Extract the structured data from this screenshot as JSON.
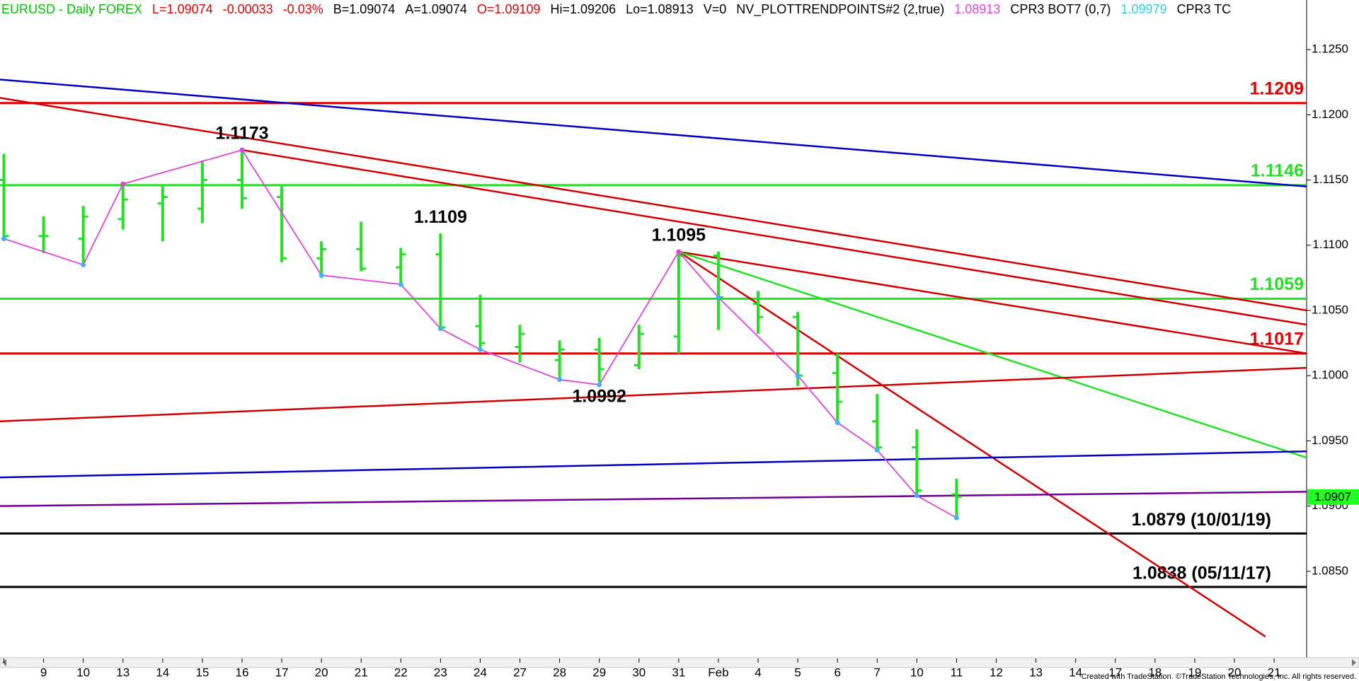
{
  "chart_data": {
    "type": "ohlc",
    "header": [
      {
        "text": "EURUSD - Daily  FOREX",
        "color": "#00c000"
      },
      {
        "text": "L=1.09074",
        "color": "#e00000"
      },
      {
        "text": "-0.00033",
        "color": "#e00000"
      },
      {
        "text": "-0.03%",
        "color": "#e00000"
      },
      {
        "text": "B=1.09074",
        "color": "#000000"
      },
      {
        "text": "A=1.09074",
        "color": "#000000"
      },
      {
        "text": "O=1.09109",
        "color": "#e00000"
      },
      {
        "text": "Hi=1.09206",
        "color": "#000000"
      },
      {
        "text": "Lo=1.08913",
        "color": "#000000"
      },
      {
        "text": "V=0",
        "color": "#000000"
      },
      {
        "text": "NV_PLOTTRENDPOINTS#2 (2,true)",
        "color": "#000000"
      },
      {
        "text": "1.08913",
        "color": "#e040e0"
      },
      {
        "text": "CPR3 BOT7 (0,7)",
        "color": "#000000"
      },
      {
        "text": "1.09979",
        "color": "#30d0e0"
      },
      {
        "text": "CPR3 TC",
        "color": "#000000"
      }
    ],
    "categories": [
      null,
      "9",
      "10",
      "13",
      "14",
      "15",
      "16",
      "17",
      "20",
      "21",
      "22",
      "23",
      "24",
      "27",
      "28",
      "29",
      "30",
      "31",
      "Feb",
      "4",
      "5",
      "6",
      "7",
      "10",
      "11",
      "12",
      "13",
      "14",
      "17",
      "18",
      "19",
      "20",
      "21"
    ],
    "open": [
      1.115,
      1.1107,
      1.1105,
      1.112,
      1.1132,
      1.1128,
      1.115,
      1.1137,
      1.109,
      1.1097,
      1.1083,
      1.1093,
      1.1038,
      1.1022,
      1.1012,
      1.102,
      1.1008,
      1.103,
      1.1092,
      1.1055,
      1.1045,
      1.1002,
      1.0965,
      1.0945,
      1.0909,
      null,
      null,
      null,
      null,
      null,
      null,
      null,
      null
    ],
    "high": [
      1.117,
      1.1122,
      1.113,
      1.1147,
      1.1145,
      1.1165,
      1.1173,
      1.1145,
      1.1103,
      1.1118,
      1.1098,
      1.1109,
      1.1062,
      1.1039,
      1.1027,
      1.1029,
      1.1039,
      1.1095,
      1.1095,
      1.1065,
      1.1049,
      1.1017,
      1.0986,
      1.0959,
      1.0921,
      null,
      null,
      null,
      null,
      null,
      null,
      null,
      null
    ],
    "low": [
      1.1105,
      1.1094,
      1.1085,
      1.1112,
      1.1103,
      1.1117,
      1.1128,
      1.1087,
      1.1075,
      1.108,
      1.107,
      1.1037,
      1.1019,
      1.101,
      1.0997,
      1.0995,
      1.1005,
      1.1017,
      1.1035,
      1.1032,
      1.0992,
      1.0964,
      1.0942,
      1.0909,
      1.0891,
      null,
      null,
      null,
      null,
      null,
      null,
      null,
      null
    ],
    "close": [
      1.1107,
      1.1107,
      1.1122,
      1.1135,
      1.1137,
      1.115,
      1.1136,
      1.109,
      1.1097,
      1.1082,
      1.1093,
      1.1037,
      1.1025,
      1.1032,
      1.102,
      1.1005,
      1.1032,
      1.1092,
      1.106,
      1.1045,
      1.1,
      1.098,
      1.0945,
      1.0912,
      1.0907,
      null,
      null,
      null,
      null,
      null,
      null,
      null,
      null
    ],
    "bar_color": "#22e022",
    "ylim": [
      1.078,
      1.1288
    ],
    "yticks": [
      {
        "value": 1.085,
        "label": "1.0850"
      },
      {
        "value": 1.09,
        "label": "1.0900"
      },
      {
        "value": 1.095,
        "label": "1.0950"
      },
      {
        "value": 1.1,
        "label": "1.1000"
      },
      {
        "value": 1.105,
        "label": "1.1050"
      },
      {
        "value": 1.11,
        "label": "1.1100"
      },
      {
        "value": 1.115,
        "label": "1.1150"
      },
      {
        "value": 1.12,
        "label": "1.1200"
      },
      {
        "value": 1.125,
        "label": "1.1250"
      }
    ],
    "levels": [
      {
        "value": 1.1209,
        "color": "#e00000"
      },
      {
        "value": 1.1146,
        "color": "#22e022"
      },
      {
        "value": 1.1059,
        "color": "#22e022"
      },
      {
        "value": 1.1017,
        "color": "#e00000"
      },
      {
        "value": 1.0879,
        "label": "1.0879 (10/01/19)",
        "color": "#000000"
      },
      {
        "value": 1.0838,
        "label": "1.0838 (05/11/17)",
        "color": "#000000"
      }
    ],
    "trendlines": [
      {
        "color": "#0000c0",
        "x": [
          -0.1,
          32.83
        ],
        "y": [
          1.1227,
          1.1145
        ]
      },
      {
        "color": "#d00000",
        "x": [
          -0.1,
          32.83
        ],
        "y": [
          1.1213,
          1.105
        ]
      },
      {
        "color": "#d00000",
        "x": [
          6,
          32.83
        ],
        "y": [
          1.1173,
          1.1039
        ]
      },
      {
        "color": "#d00000",
        "x": [
          17,
          32.83
        ],
        "y": [
          1.1095,
          1.1017
        ]
      },
      {
        "color": "#d00000",
        "x": [
          17,
          31.78
        ],
        "y": [
          1.1095,
          1.08
        ]
      },
      {
        "color": "#22e022",
        "x": [
          17,
          32.83
        ],
        "y": [
          1.1095,
          1.0937
        ]
      },
      {
        "color": "#d00000",
        "x": [
          -0.1,
          32.83
        ],
        "y": [
          1.0965,
          1.1006
        ]
      },
      {
        "color": "#0000c0",
        "x": [
          -0.1,
          32.83
        ],
        "y": [
          1.0922,
          1.0942
        ]
      },
      {
        "color": "#700090",
        "x": [
          -0.1,
          32.83
        ],
        "y": [
          1.09,
          1.0911
        ]
      }
    ],
    "zigzag": {
      "color": "#e040e0",
      "x": [
        0,
        2,
        3,
        6,
        8,
        10,
        11,
        12,
        14,
        15,
        17,
        18,
        20,
        21,
        22,
        23,
        24
      ],
      "values": [
        1.1105,
        1.1085,
        1.1147,
        1.1173,
        1.1077,
        1.107,
        1.1036,
        1.102,
        1.0997,
        1.0993,
        1.1095,
        1.106,
        1.1,
        1.0964,
        1.0943,
        1.0908,
        1.0891
      ]
    },
    "swing_labels": [
      {
        "x": 6,
        "value": 1.1173
      },
      {
        "x": 11,
        "value": 1.1109
      },
      {
        "x": 17,
        "value": 1.1095
      },
      {
        "x": 15,
        "value": 1.0992
      }
    ],
    "last_price": 1.0907,
    "last_price_color": "#22ff22",
    "footer": "Created with TradeStation. ©TradeStation Technologies, Inc. All rights reserved."
  }
}
